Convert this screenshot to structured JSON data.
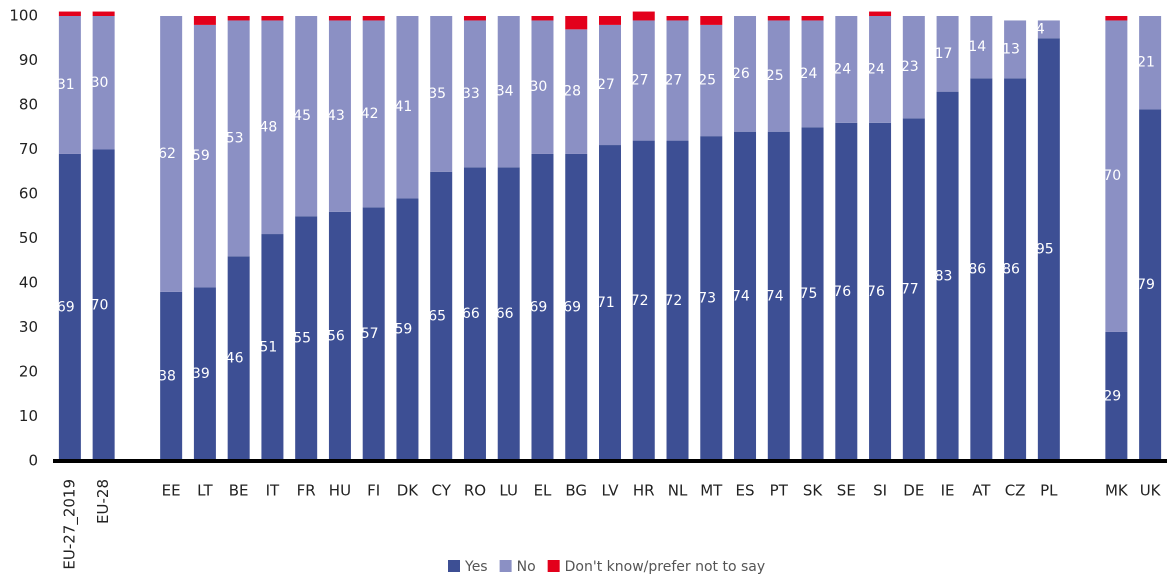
{
  "chart_data": {
    "type": "stacked_bar",
    "categories": [
      "EU-27_2019",
      "EU-28",
      null,
      "EE",
      "LT",
      "BE",
      "IT",
      "FR",
      "HU",
      "FI",
      "DK",
      "CY",
      "RO",
      "LU",
      "EL",
      "BG",
      "LV",
      "HR",
      "NL",
      "MT",
      "ES",
      "PT",
      "SK",
      "SE",
      "SI",
      "DE",
      "IE",
      "AT",
      "CZ",
      "PL",
      null,
      "MK",
      "UK"
    ],
    "series": [
      {
        "name": "Yes",
        "color": "#3d4f94",
        "values": [
          69,
          70,
          null,
          38,
          39,
          46,
          51,
          55,
          56,
          57,
          59,
          65,
          66,
          66,
          69,
          69,
          71,
          72,
          72,
          73,
          74,
          74,
          75,
          76,
          76,
          77,
          83,
          86,
          86,
          95,
          null,
          29,
          79
        ]
      },
      {
        "name": "No",
        "color": "#8b90c4",
        "values": [
          31,
          30,
          null,
          62,
          59,
          53,
          48,
          45,
          43,
          42,
          41,
          35,
          33,
          34,
          30,
          28,
          27,
          27,
          27,
          25,
          26,
          25,
          24,
          24,
          24,
          23,
          17,
          14,
          13,
          4,
          null,
          70,
          21
        ]
      },
      {
        "name": "Don't know/prefer not to say",
        "color": "#e3001b",
        "values": [
          1,
          1,
          null,
          0,
          2,
          1,
          1,
          0,
          1,
          1,
          0,
          0,
          1,
          0,
          1,
          3,
          2,
          2,
          1,
          2,
          0,
          1,
          1,
          0,
          1,
          0,
          0,
          0,
          0,
          0,
          null,
          1,
          0
        ]
      }
    ],
    "labeled_series": [
      "Yes",
      "No"
    ],
    "ylim": [
      0,
      100
    ],
    "yticks": [
      0,
      10,
      20,
      30,
      40,
      50,
      60,
      70,
      80,
      90,
      100
    ],
    "grid": false
  }
}
